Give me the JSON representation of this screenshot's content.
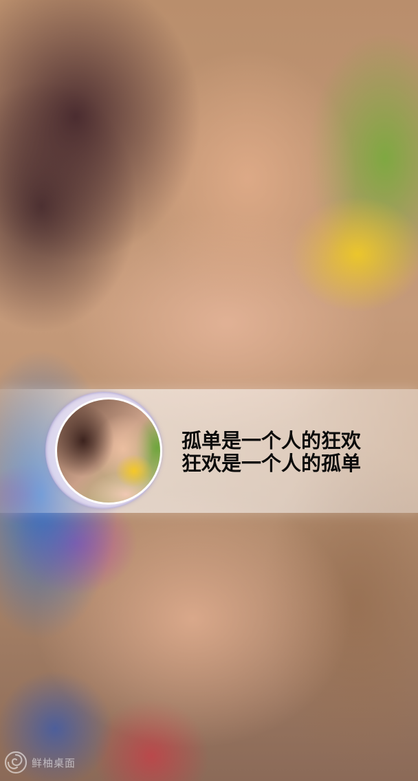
{
  "lockscreen": {
    "quote": {
      "line1": "孤单是一个人的狂欢",
      "line2": "狂欢是一个人的孤单"
    },
    "watermark": {
      "icon": "swirl-logo-icon",
      "text": "鲜柚桌面"
    },
    "colors": {
      "text": "#0b0b0b",
      "banner": "rgba(255,255,255,0.55)",
      "avatar_ring": "#d2c8eb"
    }
  }
}
